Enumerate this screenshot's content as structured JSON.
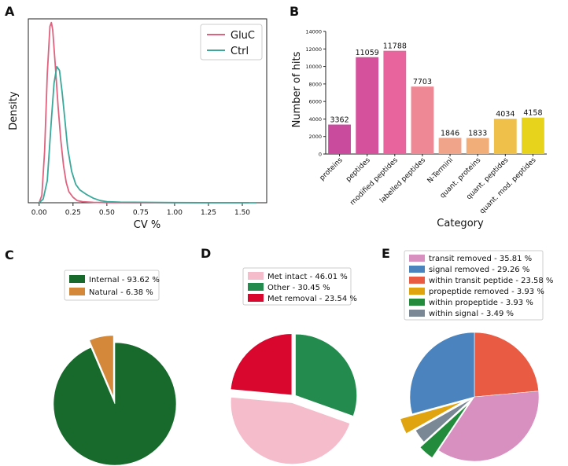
{
  "panel_labels": [
    "A",
    "B",
    "C",
    "D",
    "E"
  ],
  "chart_data": [
    {
      "panel": "A",
      "type": "line",
      "title": "",
      "xlabel": "CV %",
      "ylabel": "Density",
      "xlim": [
        -0.08,
        1.68
      ],
      "ylim": [
        0,
        1.0
      ],
      "x_ticks": [
        "0.00",
        "0.25",
        "0.50",
        "0.75",
        "1.00",
        "1.25",
        "1.50"
      ],
      "x_tick_values": [
        0,
        0.25,
        0.5,
        0.75,
        1.0,
        1.25,
        1.5
      ],
      "legend": "top-right",
      "series": [
        {
          "name": "GluC",
          "color": "#e0627f",
          "x": [
            0.0,
            0.02,
            0.04,
            0.06,
            0.08,
            0.09,
            0.1,
            0.12,
            0.14,
            0.16,
            0.18,
            0.2,
            0.22,
            0.25,
            0.28,
            0.32,
            0.4,
            0.5,
            0.7,
            1.0,
            1.3,
            1.55
          ],
          "y": [
            0.0,
            0.04,
            0.28,
            0.7,
            0.96,
            0.98,
            0.94,
            0.74,
            0.52,
            0.34,
            0.2,
            0.11,
            0.06,
            0.03,
            0.012,
            0.006,
            0.002,
            0.001,
            0.0,
            0.0,
            0.0,
            0.0
          ]
        },
        {
          "name": "Ctrl",
          "color": "#3aa89a",
          "x": [
            0.0,
            0.03,
            0.06,
            0.09,
            0.11,
            0.13,
            0.15,
            0.17,
            0.19,
            0.21,
            0.24,
            0.27,
            0.3,
            0.35,
            0.4,
            0.45,
            0.5,
            0.6,
            0.8,
            1.0,
            1.3,
            1.6
          ],
          "y": [
            0.0,
            0.02,
            0.12,
            0.45,
            0.65,
            0.74,
            0.72,
            0.6,
            0.45,
            0.3,
            0.17,
            0.1,
            0.07,
            0.045,
            0.025,
            0.012,
            0.006,
            0.003,
            0.002,
            0.001,
            0.0,
            0.0
          ]
        }
      ]
    },
    {
      "panel": "B",
      "type": "bar",
      "title": "",
      "xlabel": "Category",
      "ylabel": "Number of hits",
      "ylim": [
        0,
        14000
      ],
      "y_ticks": [
        0,
        2000,
        4000,
        6000,
        8000,
        10000,
        12000,
        14000
      ],
      "categories": [
        "proteins",
        "peptides",
        "modified peptides",
        "labelled peptides",
        "N-Termini",
        "quant. proteins",
        "quant. peptides",
        "quant. mod. peptides"
      ],
      "values": [
        3362,
        11059,
        11788,
        7703,
        1846,
        1833,
        4034,
        4158
      ],
      "value_labels": [
        "3362",
        "11059",
        "11788",
        "7703",
        "1846",
        "1833",
        "4034",
        "4158"
      ],
      "colors": [
        "#c84b9e",
        "#d6519c",
        "#e8649d",
        "#ef8895",
        "#f0a58a",
        "#f2ae79",
        "#efc04a",
        "#e8d31c"
      ]
    },
    {
      "panel": "C",
      "type": "pie",
      "legend": "top",
      "labels": [
        "Internal - 93.62 %",
        "Natural - 6.38 %"
      ],
      "values": [
        93.62,
        6.38
      ],
      "colors": [
        "#17692c",
        "#d4883a"
      ],
      "explode": [
        0,
        0.12
      ],
      "start_angle_deg": 0
    },
    {
      "panel": "D",
      "type": "pie",
      "legend": "top",
      "labels": [
        "Met intact - 46.01 %",
        "Other - 30.45 %",
        "Met removal - 23.54 %"
      ],
      "values": [
        46.01,
        30.45,
        23.54
      ],
      "colors": [
        "#f5bccb",
        "#238b4e",
        "#d9072e"
      ],
      "explode": [
        0.1,
        0.04,
        0.04
      ],
      "slice_order": [
        1,
        0,
        2
      ],
      "start_angle_deg": 0
    },
    {
      "panel": "E",
      "type": "pie",
      "legend": "top",
      "labels": [
        "transit removed - 35.81 %",
        "signal removed - 29.26 %",
        "within transit peptide - 23.58 %",
        "propeptide removed - 3.93 %",
        "within propeptide - 3.93 %",
        "within signal - 3.49 %"
      ],
      "values": [
        35.81,
        29.26,
        23.58,
        3.93,
        3.93,
        3.49
      ],
      "colors": [
        "#d890c0",
        "#4a83bd",
        "#ea5b44",
        "#dfa40f",
        "#238b3c",
        "#7a8795"
      ],
      "explode": [
        0,
        0,
        0,
        0.2,
        0.15,
        0.05
      ],
      "slice_order": [
        2,
        0,
        4,
        5,
        3,
        1
      ],
      "start_angle_deg": 0
    }
  ]
}
